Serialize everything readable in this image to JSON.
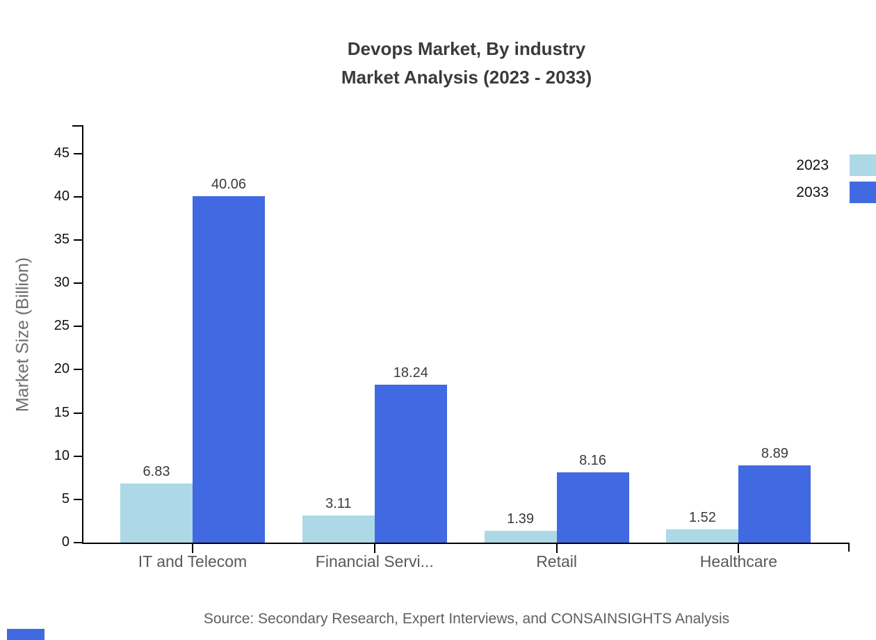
{
  "title": {
    "line1": "Devops Market, By industry",
    "line2": "Market Analysis (2023 - 2033)"
  },
  "chart_data": {
    "type": "bar",
    "categories": [
      "IT and Telecom",
      "Financial Servi...",
      "Retail",
      "Healthcare"
    ],
    "series": [
      {
        "name": "2023",
        "color": "#add8e6",
        "values": [
          6.83,
          3.11,
          1.39,
          1.52
        ]
      },
      {
        "name": "2033",
        "color": "#4169e1",
        "values": [
          40.06,
          18.24,
          8.16,
          8.89
        ]
      }
    ],
    "title": "Devops Market, By industry Market Analysis (2023 - 2033)",
    "xlabel": "",
    "ylabel": "Market Size (Billion)",
    "ylim": [
      0,
      48
    ],
    "yticks": [
      0,
      5,
      10,
      15,
      20,
      25,
      30,
      35,
      40,
      45
    ],
    "grid": false,
    "value_labels": true,
    "legend_position": "top-right"
  },
  "source_note": "Source: Secondary Research, Expert Interviews, and CONSAINSIGHTS Analysis",
  "colors": {
    "axis": "#000000",
    "title_text": "#3a3a3a",
    "tick_text": "#111111",
    "category_text": "#595959",
    "value_label_text": "#3a3a3a",
    "ylabel_text": "#6e6e6e",
    "source_text": "#5f5f5f",
    "series_2023": "#add8e6",
    "series_2033": "#4169e1",
    "brand_bar": "#4169e1"
  }
}
